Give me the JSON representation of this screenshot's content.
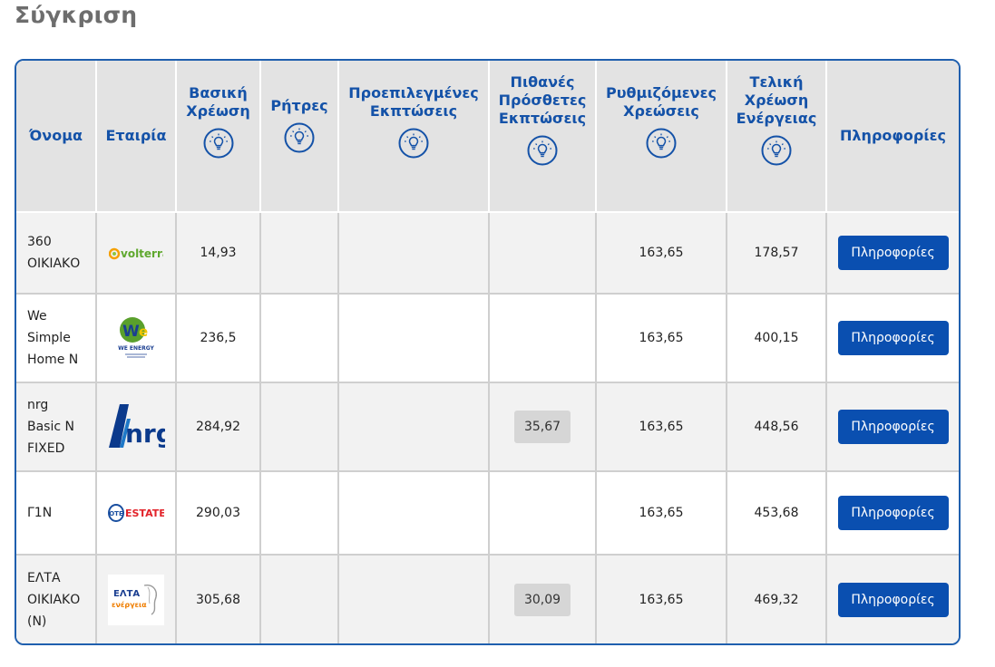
{
  "page": {
    "title": "Σύγκριση"
  },
  "colors": {
    "header_text": "#1452a8",
    "header_bg": "#e3e3e3",
    "button_bg": "#0a4fb0",
    "border_accent": "#1f5fae"
  },
  "table": {
    "headers": [
      {
        "label": "Όνομα",
        "icon": null
      },
      {
        "label": "Εταιρία",
        "icon": null
      },
      {
        "label": "Βασική Χρέωση",
        "icon": "lightbulb-info-icon"
      },
      {
        "label": "Ρήτρες",
        "icon": "lightbulb-info-icon"
      },
      {
        "label": "Προεπιλεγμένες Εκπτώσεις",
        "icon": "lightbulb-info-icon"
      },
      {
        "label": "Πιθανές Πρόσθετες Εκπτώσεις",
        "icon": "lightbulb-info-icon"
      },
      {
        "label": "Ρυθμιζόμενες Χρεώσεις",
        "icon": "lightbulb-info-icon"
      },
      {
        "label": "Τελική Χρέωση Ενέργειας",
        "icon": "lightbulb-info-icon"
      },
      {
        "label": "Πληροφορίες",
        "icon": null
      }
    ],
    "rows": [
      {
        "name_lines": [
          "360",
          "ΟΙΚΙΑΚΟ"
        ],
        "company_logo": "volterra-logo",
        "logo_text": "volterra",
        "base_charge": "14,93",
        "clauses": "",
        "default_discounts": "",
        "extra_discounts": "",
        "regulated_charges": "163,65",
        "final_charge": "178,57",
        "info_label": "Πληροφορίες"
      },
      {
        "name_lines": [
          "We",
          "Simple",
          "Home N"
        ],
        "company_logo": "we-energy-logo",
        "logo_text": "WE ENERGY",
        "base_charge": "236,5",
        "clauses": "",
        "default_discounts": "",
        "extra_discounts": "",
        "regulated_charges": "163,65",
        "final_charge": "400,15",
        "info_label": "Πληροφορίες"
      },
      {
        "name_lines": [
          "nrg",
          "Basic N",
          "FIXED"
        ],
        "company_logo": "nrg-logo",
        "logo_text": "nrg",
        "base_charge": "284,92",
        "clauses": "",
        "default_discounts": "",
        "extra_discounts": "35,67",
        "regulated_charges": "163,65",
        "final_charge": "448,56",
        "info_label": "Πληροφορίες"
      },
      {
        "name_lines": [
          "Γ1Ν"
        ],
        "company_logo": "ote-estate-logo",
        "logo_text": "ESTATE",
        "base_charge": "290,03",
        "clauses": "",
        "default_discounts": "",
        "extra_discounts": "",
        "regulated_charges": "163,65",
        "final_charge": "453,68",
        "info_label": "Πληροφορίες"
      },
      {
        "name_lines": [
          "ΕΛΤΑ",
          "ΟΙΚΙΑΚΟ",
          "(N)"
        ],
        "company_logo": "elta-energeia-logo",
        "logo_text": "ΕΛΤΑ ενέργεια",
        "base_charge": "305,68",
        "clauses": "",
        "default_discounts": "",
        "extra_discounts": "30,09",
        "regulated_charges": "163,65",
        "final_charge": "469,32",
        "info_label": "Πληροφορίες"
      }
    ]
  }
}
